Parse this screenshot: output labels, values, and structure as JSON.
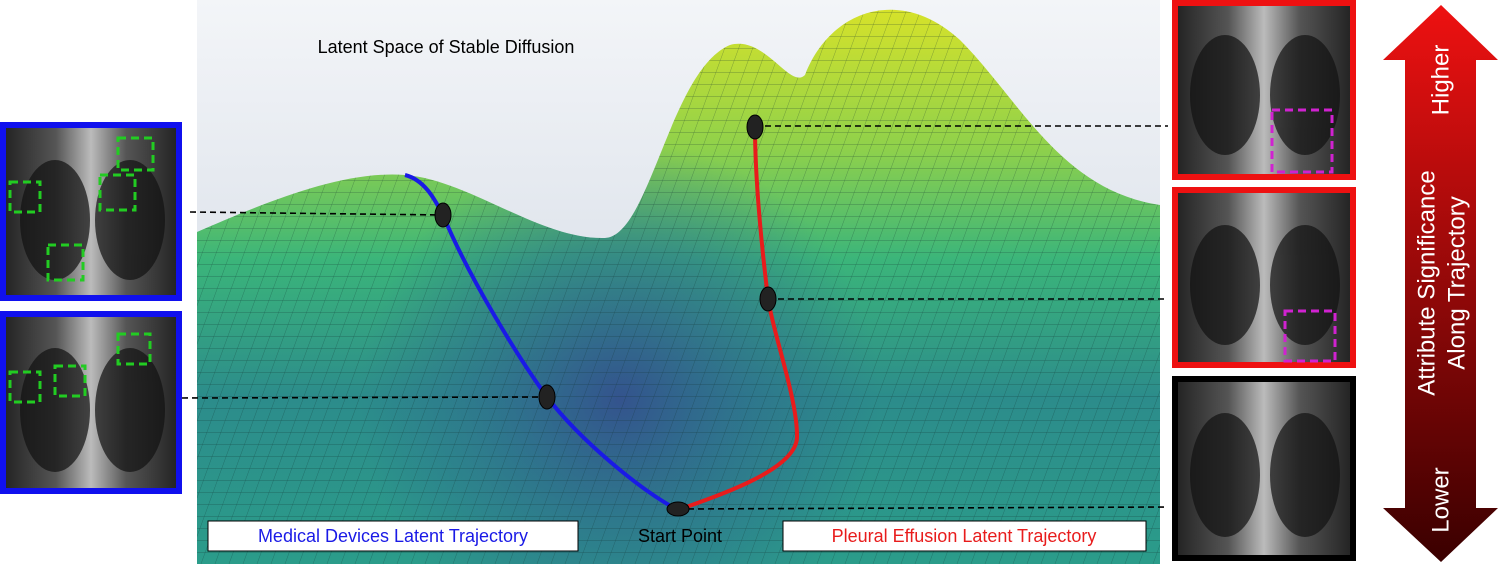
{
  "title": "Latent Space of Stable Diffusion",
  "labels": {
    "medical_devices": "Medical Devices Latent Trajectory",
    "start_point": "Start Point",
    "pleural_effusion": "Pleural Effusion Latent Trajectory"
  },
  "arrow": {
    "top": "Higher",
    "middle": [
      "Attribute Significance",
      "Along Trajectory"
    ],
    "bottom": "Lower"
  }
}
